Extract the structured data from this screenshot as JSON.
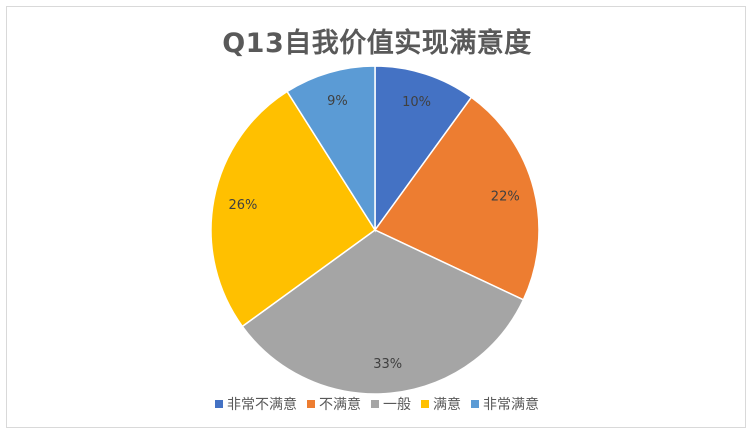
{
  "chart_data": {
    "type": "pie",
    "title": "Q13自我价值实现满意度",
    "legend_position": "bottom",
    "categories": [
      "非常不满意",
      "不满意",
      "一般",
      "满意",
      "非常满意"
    ],
    "values": [
      10,
      22,
      33,
      26,
      9
    ],
    "labels": [
      "10%",
      "22%",
      "33%",
      "26%",
      "9%"
    ],
    "colors": [
      "#4472C4",
      "#ED7D31",
      "#A5A5A5",
      "#FFC000",
      "#5B9BD5"
    ]
  }
}
